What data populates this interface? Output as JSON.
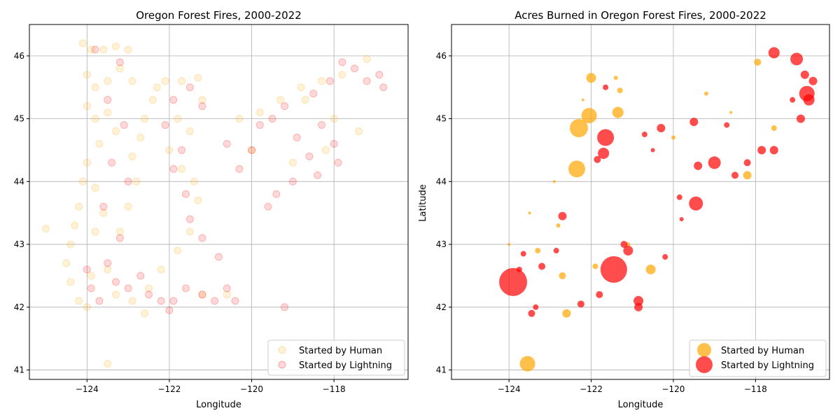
{
  "chart_data": [
    {
      "type": "scatter",
      "title": "Oregon Forest Fires, 2000-2022",
      "xlabel": "Longitude",
      "ylabel": "",
      "xlim": [
        -125.4,
        -116.2
      ],
      "ylim": [
        40.85,
        46.5
      ],
      "xticks": [
        -124,
        -122,
        -120,
        -118
      ],
      "yticks": [
        41,
        42,
        43,
        44,
        45,
        46
      ],
      "xtick_labels": [
        "−124",
        "−122",
        "−120",
        "−118"
      ],
      "ytick_labels": [
        "41",
        "42",
        "43",
        "44",
        "45",
        "46"
      ],
      "grid": true,
      "legend_position": "lower-right",
      "series": [
        {
          "name": "Started by Human",
          "color": "#ffa500",
          "opacity": 0.15,
          "points": [
            [
              -124.1,
              46.2
            ],
            [
              -123.9,
              46.1
            ],
            [
              -123.6,
              46.1
            ],
            [
              -123.3,
              46.15
            ],
            [
              -123.0,
              46.1
            ],
            [
              -124.0,
              45.7
            ],
            [
              -123.8,
              45.5
            ],
            [
              -123.5,
              45.6
            ],
            [
              -123.2,
              45.8
            ],
            [
              -122.9,
              45.6
            ],
            [
              -124.0,
              45.2
            ],
            [
              -123.8,
              45.0
            ],
            [
              -123.5,
              45.1
            ],
            [
              -123.3,
              44.8
            ],
            [
              -123.7,
              44.6
            ],
            [
              -124.0,
              44.3
            ],
            [
              -124.1,
              44.0
            ],
            [
              -123.8,
              43.9
            ],
            [
              -124.2,
              43.6
            ],
            [
              -124.3,
              43.3
            ],
            [
              -124.4,
              43.0
            ],
            [
              -124.5,
              42.7
            ],
            [
              -124.4,
              42.4
            ],
            [
              -124.2,
              42.1
            ],
            [
              -124.0,
              42.0
            ],
            [
              -123.9,
              42.5
            ],
            [
              -123.8,
              43.2
            ],
            [
              -123.6,
              43.5
            ],
            [
              -123.2,
              43.2
            ],
            [
              -123.0,
              43.6
            ],
            [
              -122.8,
              44.0
            ],
            [
              -122.9,
              44.4
            ],
            [
              -122.7,
              44.7
            ],
            [
              -122.6,
              45.0
            ],
            [
              -122.4,
              45.3
            ],
            [
              -122.3,
              45.5
            ],
            [
              -122.1,
              45.6
            ],
            [
              -121.7,
              45.6
            ],
            [
              -121.3,
              45.65
            ],
            [
              -121.2,
              45.3
            ],
            [
              -121.8,
              45.0
            ],
            [
              -121.5,
              44.8
            ],
            [
              -122.0,
              44.5
            ],
            [
              -121.7,
              44.2
            ],
            [
              -121.4,
              44.0
            ],
            [
              -121.3,
              43.7
            ],
            [
              -121.5,
              43.2
            ],
            [
              -121.8,
              42.9
            ],
            [
              -122.2,
              42.6
            ],
            [
              -122.5,
              42.3
            ],
            [
              -122.9,
              42.1
            ],
            [
              -123.3,
              42.2
            ],
            [
              -123.5,
              42.6
            ],
            [
              -121.2,
              42.2
            ],
            [
              -120.6,
              42.2
            ],
            [
              -120.3,
              45.0
            ],
            [
              -119.8,
              45.1
            ],
            [
              -119.3,
              45.3
            ],
            [
              -118.8,
              45.5
            ],
            [
              -118.3,
              45.6
            ],
            [
              -117.8,
              45.7
            ],
            [
              -117.2,
              45.95
            ],
            [
              -118.7,
              45.3
            ],
            [
              -118.0,
              45.0
            ],
            [
              -118.2,
              44.5
            ],
            [
              -120.0,
              44.5
            ],
            [
              -119.0,
              44.3
            ],
            [
              -117.4,
              44.8
            ],
            [
              -125.0,
              43.25
            ],
            [
              -123.5,
              41.1
            ],
            [
              -122.6,
              41.9
            ]
          ]
        },
        {
          "name": "Started by Lightning",
          "color": "#ff0000",
          "opacity": 0.15,
          "points": [
            [
              -123.8,
              46.1
            ],
            [
              -123.2,
              45.9
            ],
            [
              -123.5,
              45.3
            ],
            [
              -123.1,
              44.9
            ],
            [
              -123.4,
              44.3
            ],
            [
              -123.0,
              44.0
            ],
            [
              -123.6,
              43.6
            ],
            [
              -123.2,
              43.1
            ],
            [
              -123.5,
              42.7
            ],
            [
              -123.3,
              42.4
            ],
            [
              -123.0,
              42.3
            ],
            [
              -122.7,
              42.5
            ],
            [
              -122.5,
              42.2
            ],
            [
              -122.2,
              42.1
            ],
            [
              -121.9,
              42.1
            ],
            [
              -121.6,
              42.3
            ],
            [
              -121.2,
              42.2
            ],
            [
              -120.9,
              42.1
            ],
            [
              -120.6,
              42.3
            ],
            [
              -120.8,
              42.8
            ],
            [
              -121.2,
              43.1
            ],
            [
              -121.5,
              43.4
            ],
            [
              -121.6,
              43.8
            ],
            [
              -121.9,
              44.2
            ],
            [
              -121.7,
              44.5
            ],
            [
              -122.1,
              44.9
            ],
            [
              -121.9,
              45.3
            ],
            [
              -121.5,
              45.5
            ],
            [
              -121.2,
              45.2
            ],
            [
              -120.6,
              44.6
            ],
            [
              -120.3,
              44.2
            ],
            [
              -120.0,
              44.5
            ],
            [
              -119.8,
              44.9
            ],
            [
              -119.5,
              45.0
            ],
            [
              -119.2,
              45.2
            ],
            [
              -118.9,
              44.7
            ],
            [
              -118.6,
              44.4
            ],
            [
              -118.3,
              44.9
            ],
            [
              -118.5,
              45.4
            ],
            [
              -118.1,
              45.6
            ],
            [
              -117.8,
              45.9
            ],
            [
              -117.5,
              45.8
            ],
            [
              -117.2,
              45.6
            ],
            [
              -116.9,
              45.7
            ],
            [
              -116.8,
              45.5
            ],
            [
              -118.0,
              44.6
            ],
            [
              -118.4,
              44.1
            ],
            [
              -119.0,
              44.0
            ],
            [
              -119.4,
              43.8
            ],
            [
              -117.9,
              44.3
            ],
            [
              -124.0,
              42.6
            ],
            [
              -123.9,
              42.3
            ],
            [
              -123.7,
              42.1
            ],
            [
              -119.2,
              42.0
            ],
            [
              -119.6,
              43.6
            ],
            [
              -120.4,
              42.1
            ],
            [
              -122.0,
              41.95
            ]
          ]
        }
      ]
    },
    {
      "type": "scatter",
      "title": "Acres Burned in Oregon Forest Fires, 2000-2022",
      "xlabel": "Longitude",
      "ylabel": "Latitude",
      "xlim": [
        -125.4,
        -116.2
      ],
      "ylim": [
        40.85,
        46.5
      ],
      "xticks": [
        -124,
        -122,
        -120,
        -118
      ],
      "yticks": [
        41,
        42,
        43,
        44,
        45,
        46
      ],
      "xtick_labels": [
        "−124",
        "−122",
        "−120",
        "−118"
      ],
      "ytick_labels": [
        "41",
        "42",
        "43",
        "44",
        "45",
        "46"
      ],
      "grid": true,
      "legend_position": "lower-right",
      "series": [
        {
          "name": "Started by Human",
          "color": "#ffa500",
          "opacity": 0.7,
          "points": [
            [
              -123.55,
              41.1,
              11
            ],
            [
              -122.3,
              44.85,
              13
            ],
            [
              -122.35,
              44.2,
              12
            ],
            [
              -122.05,
              45.05,
              11
            ],
            [
              -122.0,
              45.65,
              7
            ],
            [
              -121.35,
              45.1,
              8
            ],
            [
              -122.7,
              42.5,
              5
            ],
            [
              -122.6,
              41.9,
              6
            ],
            [
              -120.55,
              42.6,
              7
            ],
            [
              -118.2,
              44.1,
              6
            ],
            [
              -117.95,
              45.9,
              5
            ],
            [
              -117.55,
              44.85,
              4
            ],
            [
              -121.9,
              42.65,
              4
            ],
            [
              -121.4,
              45.65,
              3
            ],
            [
              -121.3,
              45.45,
              4
            ],
            [
              -123.3,
              42.9,
              4
            ],
            [
              -122.8,
              43.3,
              3
            ],
            [
              -121.1,
              43.0,
              3
            ],
            [
              -120.0,
              44.7,
              3
            ],
            [
              -123.5,
              43.5,
              2
            ],
            [
              -122.9,
              44.0,
              2
            ],
            [
              -119.2,
              45.4,
              3
            ],
            [
              -122.2,
              45.3,
              2
            ],
            [
              -124.0,
              43.0,
              2
            ],
            [
              -118.6,
              45.1,
              2
            ]
          ]
        },
        {
          "name": "Started by Lightning",
          "color": "#ff0000",
          "opacity": 0.7,
          "points": [
            [
              -123.9,
              42.4,
              20
            ],
            [
              -121.45,
              42.6,
              19
            ],
            [
              -121.65,
              44.7,
              12
            ],
            [
              -121.7,
              44.45,
              8
            ],
            [
              -119.45,
              43.65,
              10
            ],
            [
              -119.0,
              44.3,
              9
            ],
            [
              -116.75,
              45.4,
              11
            ],
            [
              -116.7,
              45.3,
              8
            ],
            [
              -117.0,
              45.95,
              9
            ],
            [
              -117.55,
              46.05,
              8
            ],
            [
              -116.9,
              45.0,
              6
            ],
            [
              -117.85,
              44.5,
              6
            ],
            [
              -117.55,
              44.5,
              6
            ],
            [
              -122.7,
              43.45,
              6
            ],
            [
              -121.1,
              42.9,
              7
            ],
            [
              -120.85,
              42.1,
              7
            ],
            [
              -120.85,
              42.0,
              6
            ],
            [
              -120.3,
              44.85,
              6
            ],
            [
              -119.5,
              44.95,
              6
            ],
            [
              -119.4,
              44.25,
              6
            ],
            [
              -121.85,
              44.35,
              5
            ],
            [
              -121.65,
              45.5,
              4
            ],
            [
              -123.2,
              42.65,
              5
            ],
            [
              -123.35,
              42.0,
              4
            ],
            [
              -123.45,
              41.9,
              5
            ],
            [
              -122.25,
              42.05,
              5
            ],
            [
              -121.2,
              43.0,
              5
            ],
            [
              -121.8,
              42.2,
              5
            ],
            [
              -116.8,
              45.7,
              6
            ],
            [
              -116.6,
              45.6,
              6
            ],
            [
              -120.2,
              42.8,
              4
            ],
            [
              -119.85,
              43.75,
              4
            ],
            [
              -118.5,
              44.1,
              5
            ],
            [
              -118.2,
              44.3,
              5
            ],
            [
              -117.1,
              45.3,
              4
            ],
            [
              -123.65,
              42.85,
              4
            ],
            [
              -123.75,
              42.6,
              4
            ],
            [
              -122.85,
              42.9,
              4
            ],
            [
              -120.7,
              44.75,
              4
            ],
            [
              -118.7,
              44.9,
              4
            ],
            [
              -119.8,
              43.4,
              3
            ],
            [
              -120.5,
              44.5,
              3
            ]
          ]
        }
      ]
    }
  ]
}
